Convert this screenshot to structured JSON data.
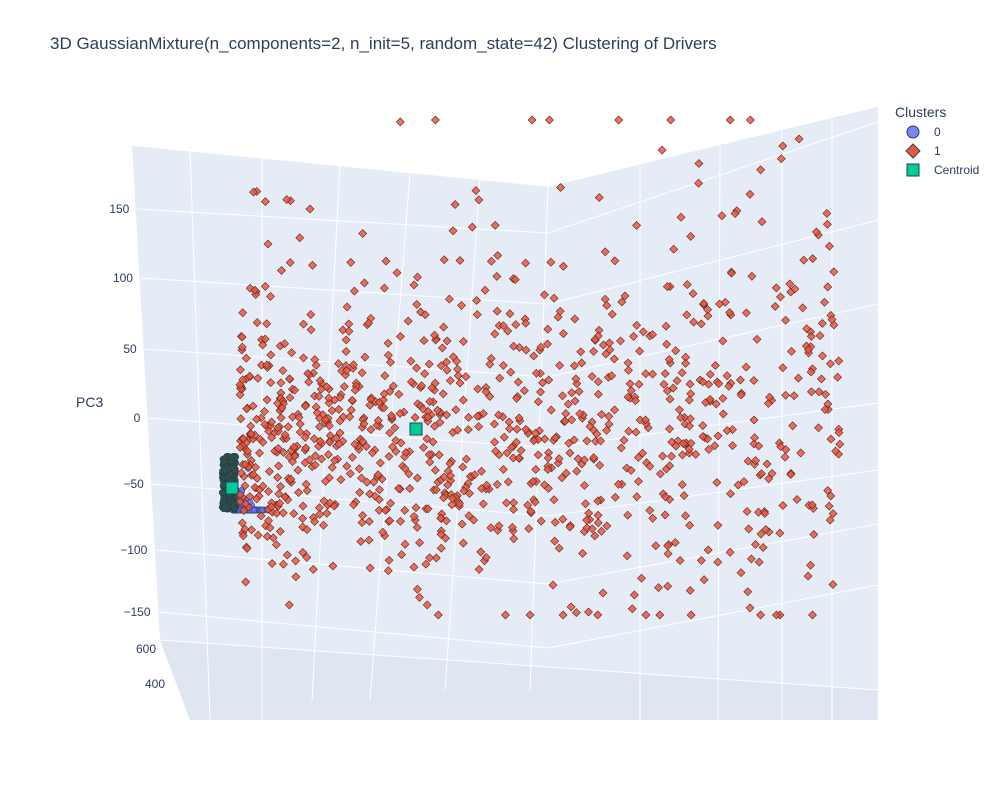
{
  "chart_data": {
    "type": "scatter",
    "title": "3D GaussianMixture(n_components=2, n_init=5, random_state=42) Clustering of Drivers",
    "zlabel": "PC3",
    "z_ticks": [
      "150",
      "100",
      "50",
      "0",
      "−50",
      "−100",
      "−150"
    ],
    "y_ticks": [
      "600",
      "400"
    ],
    "legend_title": "Clusters",
    "legend_position": "top-right",
    "series": [
      {
        "name": "0",
        "marker": "circle",
        "color": "#636efa",
        "approx_count": 420
      },
      {
        "name": "1",
        "marker": "diamond",
        "color": "#ef553b",
        "approx_count": 1080
      },
      {
        "name": "Centroid",
        "marker": "square",
        "color": "#00cc96"
      }
    ],
    "centroids": [
      {
        "cluster": "0",
        "z": -55
      },
      {
        "cluster": "1",
        "z": -10
      }
    ],
    "z_range": [
      -160,
      190
    ],
    "grid": true,
    "background": "#e5ecf6"
  }
}
